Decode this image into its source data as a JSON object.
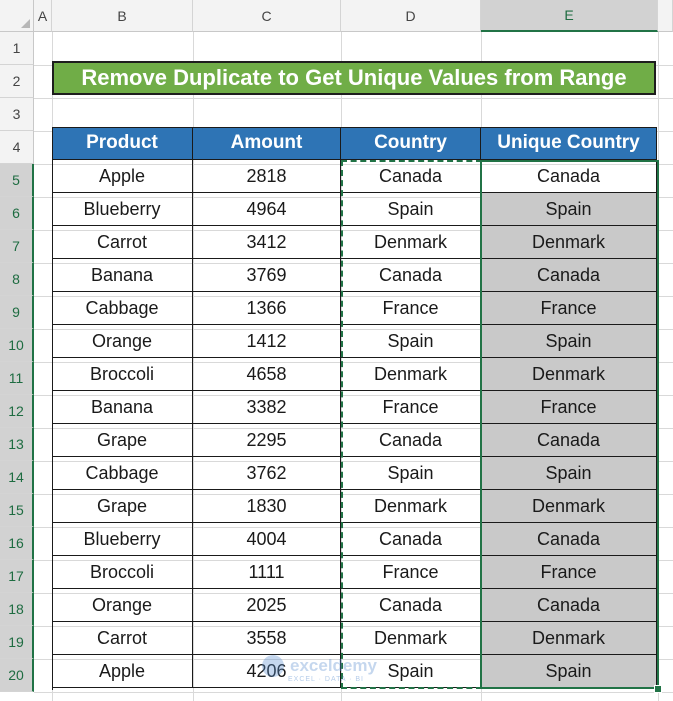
{
  "columns": [
    "A",
    "B",
    "C",
    "D",
    "E"
  ],
  "rows": [
    "1",
    "2",
    "3",
    "4",
    "5",
    "6",
    "7",
    "8",
    "9",
    "10",
    "11",
    "12",
    "13",
    "14",
    "15",
    "16",
    "17",
    "18",
    "19",
    "20"
  ],
  "title": "Remove Duplicate to Get Unique Values from Range",
  "table": {
    "headers": [
      "Product",
      "Amount",
      "Country",
      "Unique Country"
    ],
    "rows": [
      {
        "product": "Apple",
        "amount": "2818",
        "country": "Canada",
        "unique": "Canada"
      },
      {
        "product": "Blueberry",
        "amount": "4964",
        "country": "Spain",
        "unique": "Spain"
      },
      {
        "product": "Carrot",
        "amount": "3412",
        "country": "Denmark",
        "unique": "Denmark"
      },
      {
        "product": "Banana",
        "amount": "3769",
        "country": "Canada",
        "unique": "Canada"
      },
      {
        "product": "Cabbage",
        "amount": "1366",
        "country": "France",
        "unique": "France"
      },
      {
        "product": "Orange",
        "amount": "1412",
        "country": "Spain",
        "unique": "Spain"
      },
      {
        "product": "Broccoli",
        "amount": "4658",
        "country": "Denmark",
        "unique": "Denmark"
      },
      {
        "product": "Banana",
        "amount": "3382",
        "country": "France",
        "unique": "France"
      },
      {
        "product": "Grape",
        "amount": "2295",
        "country": "Canada",
        "unique": "Canada"
      },
      {
        "product": "Cabbage",
        "amount": "3762",
        "country": "Spain",
        "unique": "Spain"
      },
      {
        "product": "Grape",
        "amount": "1830",
        "country": "Denmark",
        "unique": "Denmark"
      },
      {
        "product": "Blueberry",
        "amount": "4004",
        "country": "Canada",
        "unique": "Canada"
      },
      {
        "product": "Broccoli",
        "amount": "1111",
        "country": "France",
        "unique": "France"
      },
      {
        "product": "Orange",
        "amount": "2025",
        "country": "Canada",
        "unique": "Canada"
      },
      {
        "product": "Carrot",
        "amount": "3558",
        "country": "Denmark",
        "unique": "Denmark"
      },
      {
        "product": "Apple",
        "amount": "4206",
        "country": "Spain",
        "unique": "Spain"
      }
    ]
  },
  "selected_column": "E",
  "selected_rows": [
    "5",
    "6",
    "7",
    "8",
    "9",
    "10",
    "11",
    "12",
    "13",
    "14",
    "15",
    "16",
    "17",
    "18",
    "19",
    "20"
  ],
  "watermark": {
    "name": "exceldemy",
    "sub": "EXCEL · DATA · BI"
  },
  "colors": {
    "title_bg": "#70ad47",
    "header_bg": "#2e74b5",
    "highlight": "#c9c9c9",
    "selection": "#217346"
  }
}
